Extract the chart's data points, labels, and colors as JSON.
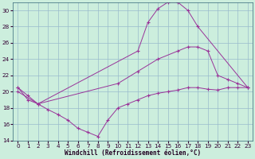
{
  "xlabel": "Windchill (Refroidissement éolien,°C)",
  "background_color": "#cceedd",
  "line_color": "#993399",
  "grid_color": "#99bbcc",
  "xlim": [
    -0.5,
    23.5
  ],
  "ylim": [
    14,
    31
  ],
  "yticks": [
    14,
    16,
    18,
    20,
    22,
    24,
    26,
    28,
    30
  ],
  "xticks": [
    0,
    1,
    2,
    3,
    4,
    5,
    6,
    7,
    8,
    9,
    10,
    11,
    12,
    13,
    14,
    15,
    16,
    17,
    18,
    19,
    20,
    21,
    22,
    23
  ],
  "series": [
    {
      "x": [
        0,
        1,
        2,
        12,
        13,
        14,
        15,
        16,
        17,
        18,
        23
      ],
      "y": [
        20.5,
        19.5,
        18.5,
        25.0,
        28.5,
        30.2,
        31.0,
        31.0,
        30.0,
        28.0,
        20.5
      ]
    },
    {
      "x": [
        0,
        2,
        10,
        12,
        14,
        16,
        17,
        18,
        19,
        20,
        21,
        22,
        23
      ],
      "y": [
        20.0,
        18.5,
        21.0,
        22.5,
        24.0,
        25.0,
        25.5,
        25.5,
        25.0,
        22.0,
        21.5,
        21.0,
        20.5
      ]
    },
    {
      "x": [
        0,
        1,
        2,
        3,
        4,
        5,
        6,
        7,
        8,
        9,
        10,
        11,
        12,
        13,
        14,
        15,
        16,
        17,
        18,
        19,
        20,
        21,
        22,
        23
      ],
      "y": [
        20.5,
        19.0,
        18.5,
        17.8,
        17.2,
        16.5,
        15.5,
        15.0,
        14.5,
        16.5,
        18.0,
        18.5,
        19.0,
        19.5,
        19.8,
        20.0,
        20.2,
        20.5,
        20.5,
        20.3,
        20.2,
        20.5,
        20.5,
        20.5
      ]
    }
  ]
}
